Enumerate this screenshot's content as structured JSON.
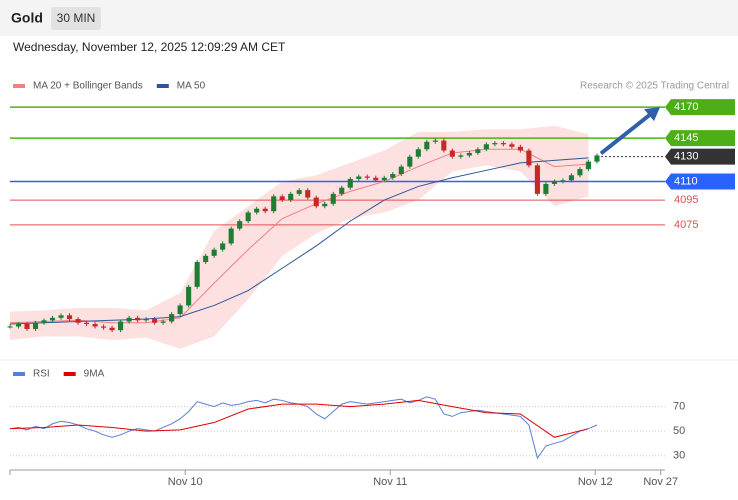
{
  "header": {
    "symbol": "Gold",
    "interval": "30 MIN",
    "timestamp": "Wednesday, November 12, 2025 12:09:29 AM CET"
  },
  "chart_data": [
    {
      "type": "candlestick",
      "credit": "Research © 2025 Trading Central",
      "closes": [
        3993,
        3995,
        3991,
        3996,
        3998,
        4000,
        4002,
        3999,
        3996,
        3995,
        3993,
        3992,
        3990,
        3997,
        4000,
        3998,
        3999,
        3996,
        3997,
        4003,
        4010,
        4025,
        4045,
        4050,
        4055,
        4060,
        4072,
        4078,
        4085,
        4088,
        4086,
        4098,
        4095,
        4100,
        4103,
        4097,
        4090,
        4092,
        4100,
        4105,
        4112,
        4114,
        4113,
        4111,
        4113,
        4116,
        4122,
        4130,
        4136,
        4142,
        4143,
        4135,
        4130,
        4131,
        4133,
        4136,
        4140,
        4141,
        4140,
        4138,
        4135,
        4123,
        4100,
        4108,
        4110,
        4111,
        4115,
        4120,
        4126,
        4131
      ],
      "up_color": "#1e7d32",
      "down_color": "#c62828",
      "series": [
        {
          "name": "MA 20 + Bollinger Bands",
          "color": "#f08080",
          "band_color": "#fde0e0",
          "x": [
            0,
            4,
            8,
            12,
            16,
            20,
            24,
            28,
            32,
            36,
            40,
            44,
            48,
            52,
            56,
            60,
            64,
            68
          ],
          "values": [
            3996,
            3997,
            3998,
            3996,
            3996,
            4000,
            4028,
            4055,
            4080,
            4092,
            4102,
            4110,
            4122,
            4133,
            4136,
            4136,
            4122,
            4124
          ],
          "upper": [
            4005,
            4006,
            4008,
            4008,
            4006,
            4020,
            4070,
            4090,
            4110,
            4115,
            4125,
            4135,
            4150,
            4150,
            4152,
            4152,
            4155,
            4148
          ],
          "lower": [
            3982,
            3985,
            3985,
            3982,
            3984,
            3975,
            3985,
            4015,
            4050,
            4068,
            4080,
            4085,
            4095,
            4118,
            4123,
            4118,
            4090,
            4098
          ]
        },
        {
          "name": "MA 50",
          "color": "#2f5597",
          "x": [
            0,
            4,
            8,
            12,
            16,
            20,
            24,
            28,
            32,
            36,
            40,
            44,
            48,
            52,
            56,
            60,
            64,
            68
          ],
          "values": [
            3995,
            3996,
            3997,
            3998,
            3999,
            4001,
            4010,
            4022,
            4040,
            4058,
            4078,
            4095,
            4106,
            4113,
            4119,
            4125,
            4127,
            4129
          ]
        }
      ],
      "levels": [
        {
          "value": 4170,
          "color": "#4caf17"
        },
        {
          "value": 4145,
          "color": "#4caf17"
        },
        {
          "value": 4130,
          "color": "#333333"
        },
        {
          "value": 4110,
          "color": "#2962ff"
        },
        {
          "value": 4095,
          "color": "#e05050"
        },
        {
          "value": 4075,
          "color": "#e05050"
        }
      ],
      "xlim": [
        0,
        77
      ],
      "ylim": [
        3970,
        4208
      ]
    },
    {
      "type": "line",
      "series": [
        {
          "name": "RSI",
          "color": "#5b7fd6",
          "values": [
            52,
            53,
            51,
            54,
            52,
            56,
            58,
            57,
            55,
            52,
            50,
            47,
            45,
            47,
            50,
            52,
            51,
            50,
            53,
            56,
            60,
            66,
            74,
            72,
            70,
            73,
            71,
            72,
            74,
            75,
            73,
            76,
            75,
            73,
            72,
            70,
            64,
            60,
            66,
            72,
            74,
            73,
            72,
            73,
            74,
            75,
            76,
            73,
            75,
            78,
            76,
            64,
            62,
            65,
            66,
            67,
            66,
            65,
            64,
            63,
            62,
            55,
            28,
            38,
            40,
            42,
            46,
            50,
            52,
            55
          ]
        },
        {
          "name": "9MA",
          "color": "#e00000",
          "x": [
            0,
            4,
            8,
            12,
            16,
            20,
            24,
            28,
            32,
            36,
            40,
            44,
            48,
            52,
            56,
            60,
            64,
            68
          ],
          "values": [
            52,
            53,
            55,
            53,
            50,
            51,
            57,
            68,
            72,
            72,
            70,
            72,
            75,
            70,
            65,
            64,
            45,
            52
          ]
        }
      ],
      "xlim": [
        0,
        77
      ],
      "ylim": [
        20,
        90
      ],
      "yticks": [
        70,
        50,
        30
      ],
      "xticks": [
        {
          "value": 20.6,
          "label": "Nov 10"
        },
        {
          "value": 44.7,
          "label": "Nov 11"
        },
        {
          "value": 68.8,
          "label": "Nov 12"
        },
        {
          "value": 76.5,
          "label": "Nov 27"
        }
      ]
    }
  ]
}
